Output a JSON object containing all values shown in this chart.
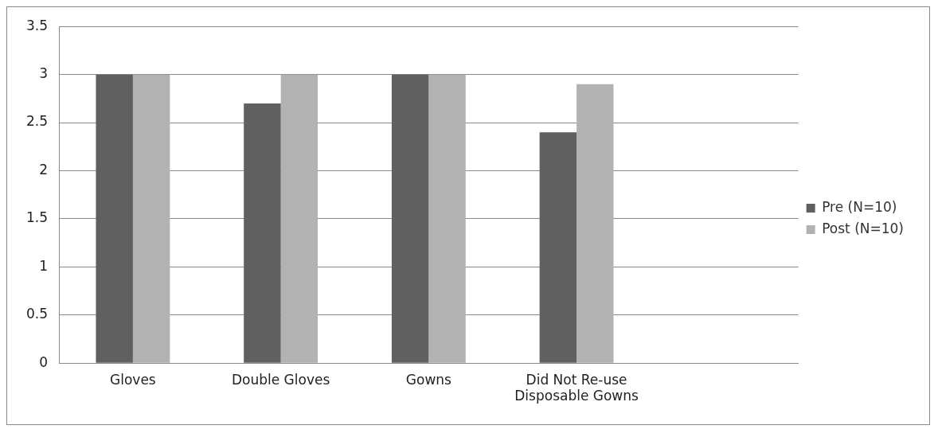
{
  "chart_data": {
    "type": "bar",
    "categories": [
      "Gloves",
      "Double Gloves",
      "Gowns",
      "Did Not Re-use Disposable Gowns",
      null
    ],
    "series": [
      {
        "name": "Pre (N=10)",
        "color": "#606060",
        "values": [
          3,
          2.7,
          3,
          2.4,
          null
        ]
      },
      {
        "name": "Post (N=10)",
        "color": "#b2b2b2",
        "values": [
          3,
          3,
          3,
          2.9,
          null
        ]
      }
    ],
    "ylim": [
      0,
      3.5
    ],
    "yticks": [
      0,
      0.5,
      1,
      1.5,
      2,
      2.5,
      3,
      3.5
    ],
    "grid": "y",
    "legend": "right"
  }
}
